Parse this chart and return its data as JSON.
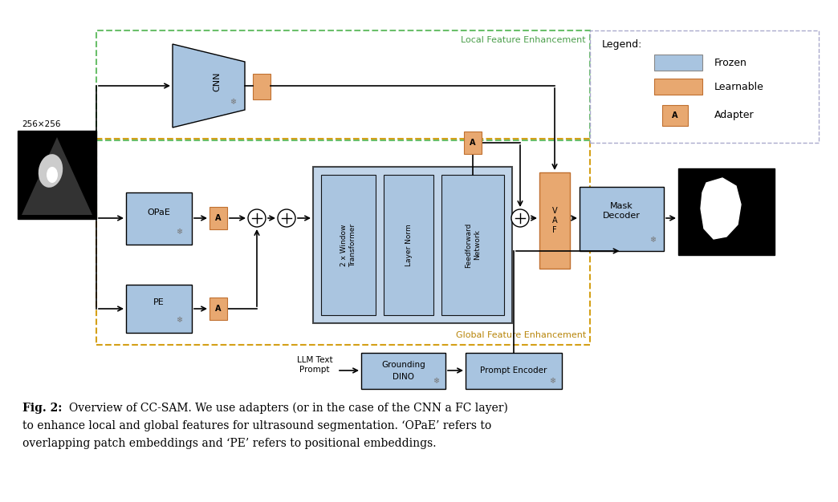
{
  "frozen_color": "#a8c4e0",
  "learnable_color": "#e8a870",
  "bg_color": "#ffffff",
  "local_box_color": "#6abf6a",
  "global_box_color": "#d4a017",
  "legend_border_color": "#aaaacc",
  "local_label": "Local Feature Enhancement",
  "global_label": "Global Feature Enhancement",
  "caption_line1": "Overview of CC-SAM. We use adapters (or in the case of the CNN a FC layer)",
  "caption_line2": "to enhance local and global features for ultrasound segmentation. ‘OPaE’ refers to",
  "caption_line3": "overlapping patch embeddings and ‘PE’ refers to positional embeddings."
}
